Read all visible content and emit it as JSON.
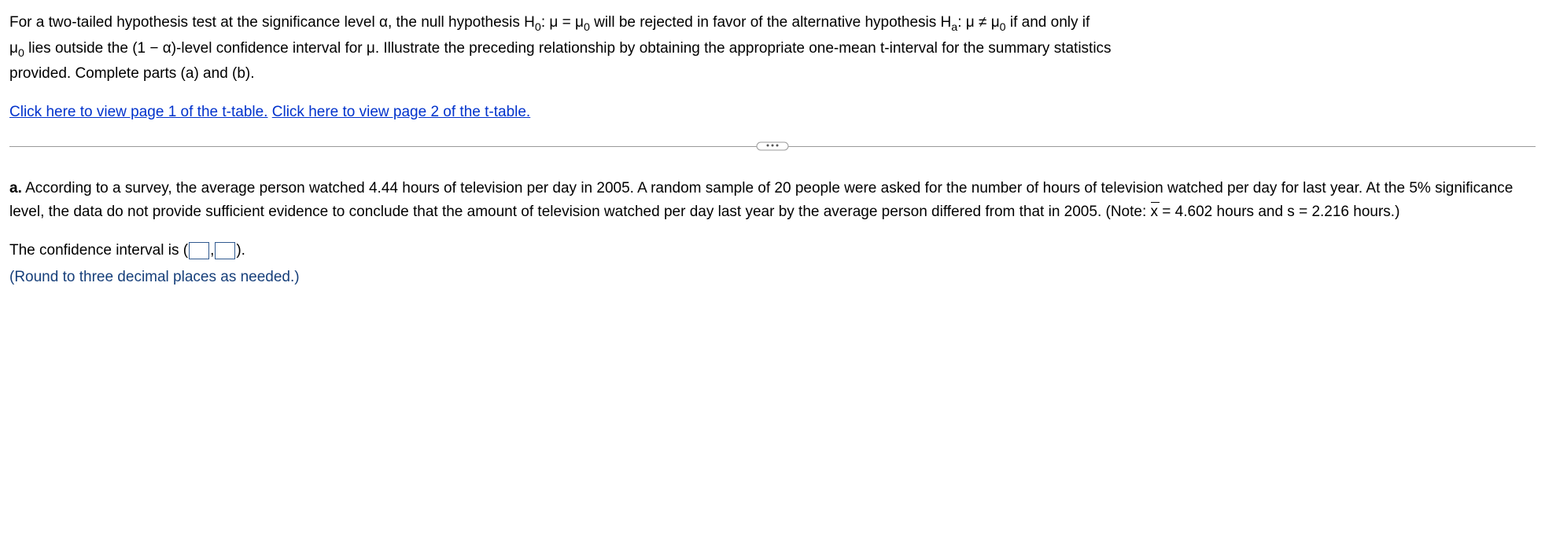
{
  "intro": {
    "part1": "For a two-tailed hypothesis test at the significance level α, the null hypothesis H",
    "sub1": "0",
    "part2": ": μ = μ",
    "sub2": "0",
    "part3": " will be rejected in favor of the alternative hypothesis H",
    "sub3": "a",
    "part4": ": μ ≠ μ",
    "sub4": "0",
    "part5": " if and only if",
    "line2a": "μ",
    "line2sub": "0",
    "line2b": " lies outside the (1 − α)-level confidence interval for μ. Illustrate the preceding relationship by obtaining the appropriate one-mean t-interval for the summary statistics",
    "line3": "provided. Complete parts (a) and (b)."
  },
  "links": {
    "page1": "Click here to view page 1 of the t-table.",
    "page2": "Click here to view page 2 of the t-table."
  },
  "part_a": {
    "label": "a.",
    "text1": " According to a survey, the average person watched 4.44 hours of television per day in 2005. A random sample of 20 people were asked for the number of hours of television watched per day for last year. At the 5% significance level, the data do not provide sufficient evidence to conclude that the amount of television watched per day last year by the average person differed from that in 2005. (Note: ",
    "xbar": "x",
    "text2": " = 4.602 hours and s = 2.216 hours.)"
  },
  "answer": {
    "pre": "The confidence interval is (",
    "comma": ",",
    "post": ").",
    "hint": "(Round to three decimal places as needed.)",
    "val1": "",
    "val2": ""
  }
}
